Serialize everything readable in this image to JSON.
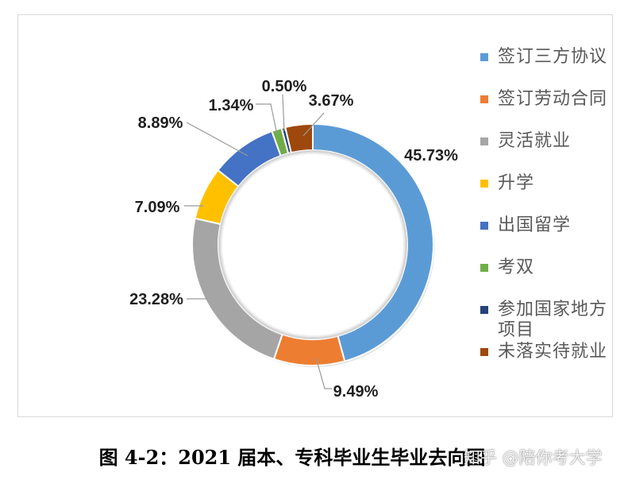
{
  "chart_data": {
    "type": "pie",
    "donut": true,
    "title": "",
    "categories": [
      "签订三方协议",
      "签订劳动合同",
      "灵活就业",
      "升学",
      "出国留学",
      "考双",
      "参加国家地方项目",
      "未落实待就业"
    ],
    "values": [
      45.73,
      9.49,
      23.28,
      7.09,
      8.89,
      1.34,
      0.5,
      3.67
    ],
    "value_labels": [
      "45.73%",
      "9.49%",
      "23.28%",
      "7.09%",
      "8.89%",
      "1.34%",
      "0.50%",
      "3.67%"
    ],
    "colors": [
      "#5B9BD5",
      "#ED7D31",
      "#A5A5A5",
      "#FFC000",
      "#4472C4",
      "#70AD47",
      "#264478",
      "#9E480E"
    ],
    "legend_position": "right"
  },
  "caption": "图 4-2：2021 届本、专科毕业生毕业去向图",
  "watermark": "知乎 @陪你考大学"
}
